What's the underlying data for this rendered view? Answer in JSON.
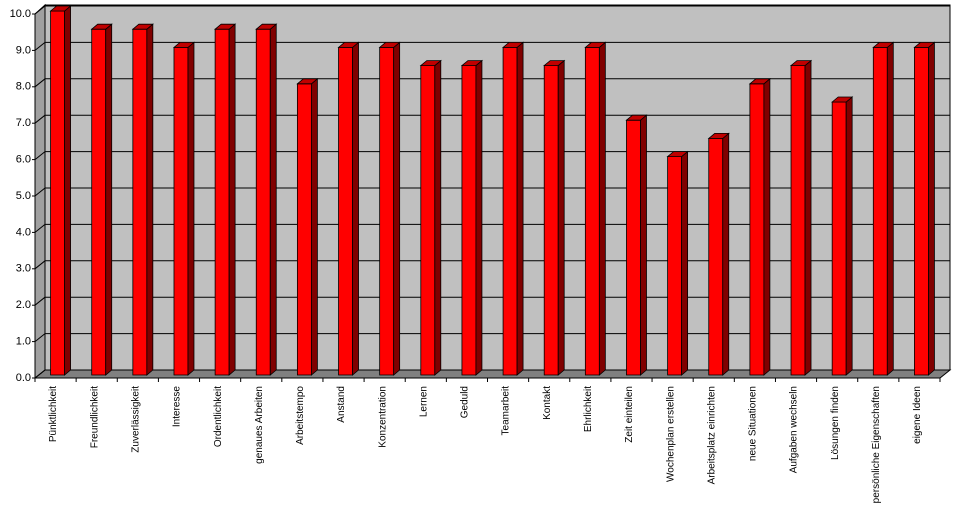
{
  "chart_data": {
    "type": "bar3d",
    "categories": [
      "Pünktlichkeit",
      "Freundlichkeit",
      "Zuverlässigkeit",
      "Interesse",
      "Ordentlichkeit",
      "genaues Arbeiten",
      "Arbeitstempo",
      "Anstand",
      "Konzentration",
      "Lernen",
      "Geduld",
      "Teamarbeit",
      "Kontakt",
      "Ehrlichkeit",
      "Zeit einteilen",
      "Wochenplan erstellen",
      "Arbeitsplatz einrichten",
      "neue Situationen",
      "Aufgaben wechseln",
      "Lösungen finden",
      "persönliche Eigenschaften",
      "eigene Ideen"
    ],
    "values": [
      10,
      9.5,
      9.5,
      9,
      9.5,
      9.5,
      8,
      9,
      9,
      8.5,
      8.5,
      9,
      8.5,
      9,
      7,
      6,
      6.5,
      8,
      8.5,
      7.5,
      9,
      9
    ],
    "color": "#ff0000",
    "ylim": [
      0,
      10
    ],
    "yticks": [
      {
        "value": 0,
        "label": "0.0"
      },
      {
        "value": 1,
        "label": "1.0"
      },
      {
        "value": 2,
        "label": "2.0"
      },
      {
        "value": 3,
        "label": "3.0"
      },
      {
        "value": 4,
        "label": "4.0"
      },
      {
        "value": 5,
        "label": "5.0"
      },
      {
        "value": 6,
        "label": "6.0"
      },
      {
        "value": 7,
        "label": "7.0"
      },
      {
        "value": 8,
        "label": "8.0"
      },
      {
        "value": 9,
        "label": "9.0"
      },
      {
        "value": 10,
        "label": "10.0"
      }
    ],
    "grid": true
  }
}
